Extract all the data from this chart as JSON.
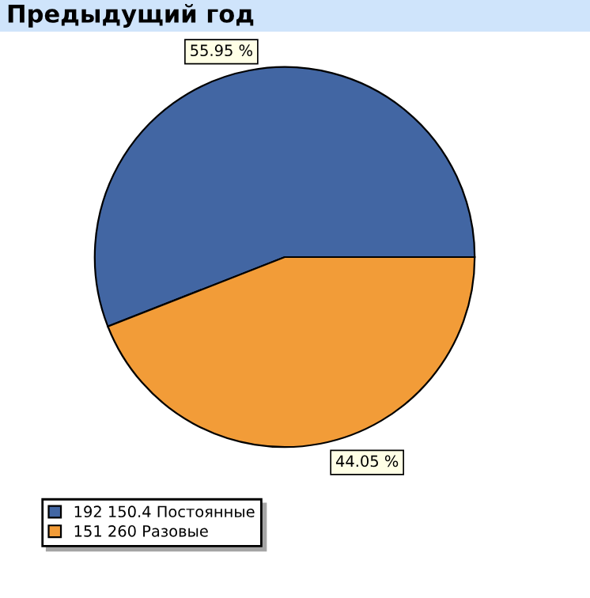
{
  "chart_data": {
    "type": "pie",
    "title": "Предыдущий год",
    "categories": [
      "192 150.4 Постоянные",
      "151 260 Разовые"
    ],
    "values": [
      55.95,
      44.05
    ],
    "colors": [
      "#4266a3",
      "#f29c38"
    ],
    "value_labels": [
      "55.95 %",
      "44.05 %"
    ],
    "legend": "bottom left"
  }
}
